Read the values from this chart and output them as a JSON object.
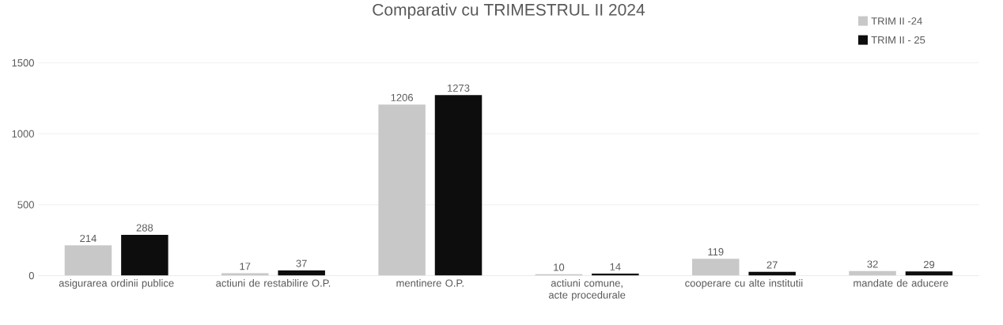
{
  "chart_data": {
    "type": "bar",
    "title": "Comparativ cu TRIMESTRUL II 2024",
    "categories": [
      "asigurarea ordinii publice",
      "actiuni de restabilire O.P.",
      "mentinere O.P.",
      "actiuni comune, acte procedurale",
      "cooperare cu alte institutii",
      "mandate de aducere"
    ],
    "series": [
      {
        "name": "TRIM II -24",
        "color": "#c8c8c8",
        "values": [
          214,
          17,
          1206,
          10,
          119,
          32
        ]
      },
      {
        "name": "TRIM II - 25",
        "color": "#0d0d0d",
        "values": [
          288,
          37,
          1273,
          14,
          27,
          29
        ]
      }
    ],
    "ylim": [
      0,
      1700
    ],
    "yticks": [
      0,
      500,
      1000,
      1500
    ],
    "grid": "y",
    "legend": "top right",
    "data_labels": true
  }
}
